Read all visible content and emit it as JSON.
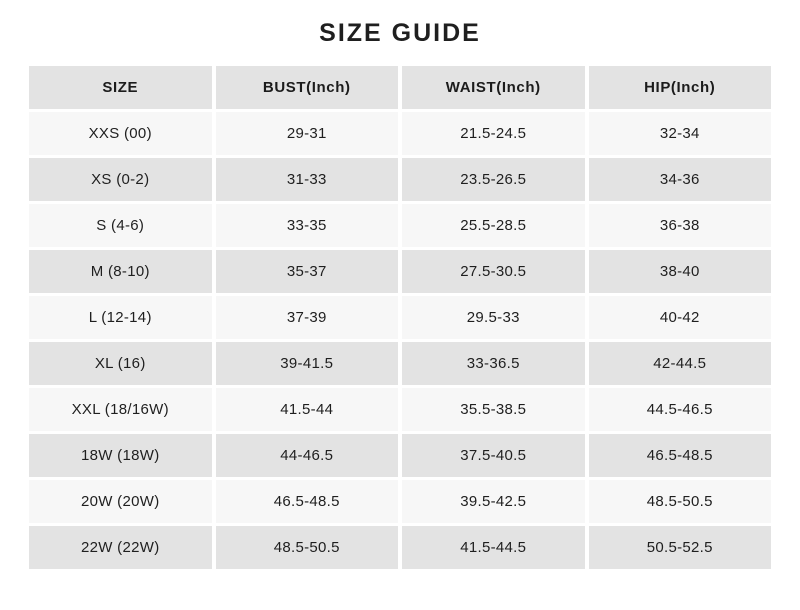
{
  "page": {
    "title": "SIZE GUIDE"
  },
  "table": {
    "columns": [
      "SIZE",
      "BUST(Inch)",
      "WAIST(Inch)",
      "HIP(Inch)"
    ],
    "rows": [
      {
        "size": "XXS (00)",
        "bust": "29-31",
        "waist": "21.5-24.5",
        "hip": "32-34"
      },
      {
        "size": "XS (0-2)",
        "bust": "31-33",
        "waist": "23.5-26.5",
        "hip": "34-36"
      },
      {
        "size": "S (4-6)",
        "bust": "33-35",
        "waist": "25.5-28.5",
        "hip": "36-38"
      },
      {
        "size": "M (8-10)",
        "bust": "35-37",
        "waist": "27.5-30.5",
        "hip": "38-40"
      },
      {
        "size": "L (12-14)",
        "bust": "37-39",
        "waist": "29.5-33",
        "hip": "40-42"
      },
      {
        "size": "XL (16)",
        "bust": "39-41.5",
        "waist": "33-36.5",
        "hip": "42-44.5"
      },
      {
        "size": "XXL (18/16W)",
        "bust": "41.5-44",
        "waist": "35.5-38.5",
        "hip": "44.5-46.5"
      },
      {
        "size": "18W (18W)",
        "bust": "44-46.5",
        "waist": "37.5-40.5",
        "hip": "46.5-48.5"
      },
      {
        "size": "20W (20W)",
        "bust": "46.5-48.5",
        "waist": "39.5-42.5",
        "hip": "48.5-50.5"
      },
      {
        "size": "22W (22W)",
        "bust": "48.5-50.5",
        "waist": "41.5-44.5",
        "hip": "50.5-52.5"
      }
    ]
  },
  "colors": {
    "page_bg": "#ffffff",
    "header_bg": "#e3e3e3",
    "row_light_bg": "#f7f7f7",
    "row_dark_bg": "#e3e3e3",
    "text": "#1f1f1f"
  }
}
